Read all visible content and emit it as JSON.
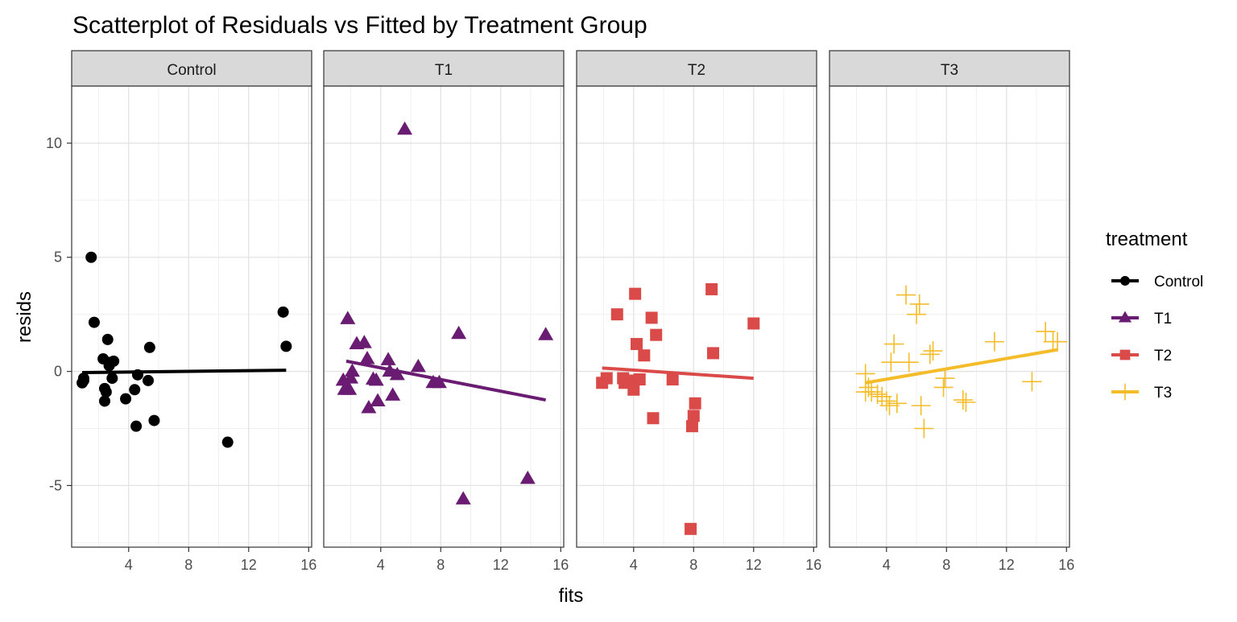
{
  "chart_data": {
    "type": "scatter",
    "title": "Scatterplot of Residuals vs Fitted by Treatment Group",
    "xlabel": "fits",
    "ylabel": "resids",
    "xlim": [
      0.2,
      16.2
    ],
    "ylim": [
      -7.7,
      12.5
    ],
    "x_ticks": [
      4,
      8,
      12,
      16
    ],
    "x_tick_labels": [
      "4",
      "8",
      "12",
      "16"
    ],
    "y_ticks": [
      -5,
      0,
      5,
      10
    ],
    "y_tick_labels": [
      "-5",
      "0",
      "5",
      "10"
    ],
    "grid": true,
    "legend": {
      "title": "treatment",
      "placement": "right"
    },
    "panels": [
      "Control",
      "T1",
      "T2",
      "T3"
    ],
    "series": [
      {
        "name": "Control",
        "color": "#000000",
        "marker": "circle",
        "points": [
          [
            0.9,
            -0.5
          ],
          [
            1.0,
            -0.4
          ],
          [
            1.0,
            -0.3
          ],
          [
            1.5,
            5.0
          ],
          [
            1.7,
            2.15
          ],
          [
            2.4,
            -1.3
          ],
          [
            2.3,
            0.55
          ],
          [
            2.4,
            -0.75
          ],
          [
            2.5,
            -0.9
          ],
          [
            2.6,
            1.4
          ],
          [
            2.7,
            0.25
          ],
          [
            2.8,
            0.4
          ],
          [
            2.9,
            -0.3
          ],
          [
            3.0,
            0.45
          ],
          [
            3.8,
            -1.2
          ],
          [
            4.5,
            -2.4
          ],
          [
            4.4,
            -0.8
          ],
          [
            4.6,
            -0.15
          ],
          [
            5.3,
            -0.4
          ],
          [
            5.4,
            1.05
          ],
          [
            5.7,
            -2.15
          ],
          [
            10.6,
            -3.1
          ],
          [
            14.3,
            2.6
          ],
          [
            14.5,
            1.1
          ]
        ],
        "fit_line": [
          [
            0.9,
            -0.05
          ],
          [
            14.5,
            0.05
          ]
        ]
      },
      {
        "name": "T1",
        "color": "#6A1B72",
        "marker": "triangle",
        "points": [
          [
            1.5,
            -0.4
          ],
          [
            1.6,
            -0.8
          ],
          [
            1.8,
            2.3
          ],
          [
            1.9,
            -0.8
          ],
          [
            2.0,
            -0.3
          ],
          [
            2.1,
            0.0
          ],
          [
            2.4,
            1.2
          ],
          [
            2.9,
            1.25
          ],
          [
            3.1,
            0.55
          ],
          [
            3.2,
            -1.6
          ],
          [
            3.5,
            -0.35
          ],
          [
            3.7,
            -0.4
          ],
          [
            3.8,
            -1.3
          ],
          [
            4.5,
            0.5
          ],
          [
            4.6,
            0.0
          ],
          [
            4.8,
            -1.05
          ],
          [
            5.1,
            -0.15
          ],
          [
            5.6,
            10.6
          ],
          [
            6.5,
            0.2
          ],
          [
            7.5,
            -0.5
          ],
          [
            7.9,
            -0.5
          ],
          [
            9.2,
            1.65
          ],
          [
            9.5,
            -5.6
          ],
          [
            13.8,
            -4.7
          ],
          [
            15.0,
            1.6
          ]
        ],
        "fit_line": [
          [
            1.7,
            0.45
          ],
          [
            15.0,
            -1.25
          ]
        ]
      },
      {
        "name": "T2",
        "color": "#D94A48",
        "marker": "square",
        "points": [
          [
            1.9,
            -0.5
          ],
          [
            2.2,
            -0.3
          ],
          [
            2.9,
            2.5
          ],
          [
            3.3,
            -0.3
          ],
          [
            3.4,
            -0.5
          ],
          [
            3.9,
            -0.4
          ],
          [
            4.0,
            -0.8
          ],
          [
            4.1,
            3.4
          ],
          [
            4.2,
            1.2
          ],
          [
            4.4,
            -0.35
          ],
          [
            4.7,
            0.7
          ],
          [
            5.2,
            2.35
          ],
          [
            5.3,
            -2.05
          ],
          [
            5.5,
            1.6
          ],
          [
            6.6,
            -0.35
          ],
          [
            7.8,
            -6.9
          ],
          [
            7.9,
            -2.4
          ],
          [
            8.0,
            -1.95
          ],
          [
            8.1,
            -1.4
          ],
          [
            9.2,
            3.6
          ],
          [
            9.3,
            0.8
          ],
          [
            12.0,
            2.1
          ]
        ],
        "fit_line": [
          [
            1.9,
            0.15
          ],
          [
            12.0,
            -0.3
          ]
        ]
      },
      {
        "name": "T3",
        "color": "#F5BC2A",
        "marker": "plus",
        "points": [
          [
            2.6,
            -0.1
          ],
          [
            2.6,
            -0.9
          ],
          [
            2.8,
            -0.7
          ],
          [
            3.0,
            -0.9
          ],
          [
            3.4,
            -1.0
          ],
          [
            3.7,
            -1.1
          ],
          [
            4.0,
            -1.3
          ],
          [
            4.2,
            -1.5
          ],
          [
            4.3,
            0.4
          ],
          [
            4.5,
            1.2
          ],
          [
            4.7,
            -1.4
          ],
          [
            5.3,
            3.35
          ],
          [
            5.5,
            0.4
          ],
          [
            6.0,
            2.5
          ],
          [
            6.2,
            2.95
          ],
          [
            6.3,
            -1.5
          ],
          [
            6.5,
            -2.5
          ],
          [
            6.9,
            0.75
          ],
          [
            7.1,
            0.9
          ],
          [
            7.8,
            -0.7
          ],
          [
            7.9,
            -0.3
          ],
          [
            9.1,
            -1.25
          ],
          [
            9.3,
            -1.35
          ],
          [
            11.2,
            1.3
          ],
          [
            13.7,
            -0.45
          ],
          [
            14.6,
            1.75
          ],
          [
            15.1,
            1.3
          ],
          [
            15.4,
            1.3
          ]
        ],
        "fit_line": [
          [
            2.6,
            -0.5
          ],
          [
            15.4,
            0.95
          ]
        ]
      }
    ]
  }
}
